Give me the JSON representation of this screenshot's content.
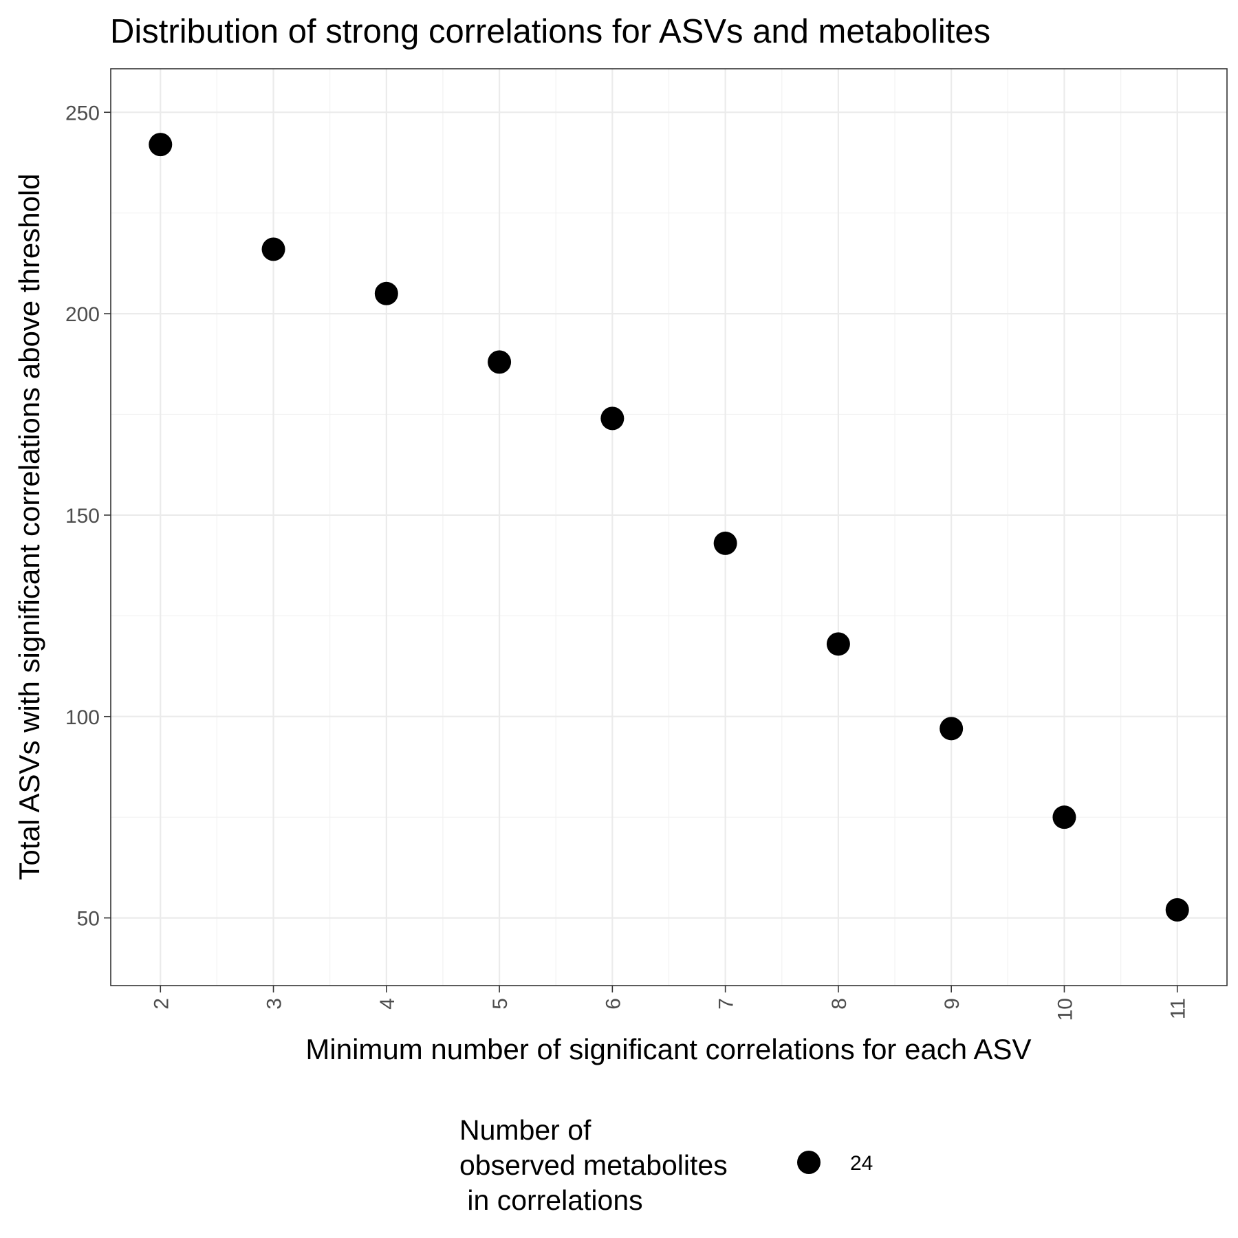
{
  "chart_data": {
    "type": "scatter",
    "title": "Distribution of strong correlations for ASVs and metabolites",
    "xlabel": "Minimum number of significant correlations for each ASV",
    "ylabel": "Total ASVs with significant correlations above threshold",
    "x": [
      2,
      3,
      4,
      5,
      6,
      7,
      8,
      9,
      10,
      11
    ],
    "y": [
      242,
      216,
      205,
      188,
      174,
      143,
      118,
      97,
      75,
      52
    ],
    "xticks": [
      "2",
      "3",
      "4",
      "5",
      "6",
      "7",
      "8",
      "9",
      "10",
      "11"
    ],
    "yticks": [
      50,
      100,
      150,
      200,
      250
    ],
    "ytick_labels": [
      "50",
      "100",
      "150",
      "200",
      "250"
    ],
    "xlim": [
      1.56,
      11.44
    ],
    "ylim": [
      33.2,
      260.8
    ],
    "grid": true,
    "point_color": "#000000",
    "legend": {
      "position": "bottom",
      "title_lines": [
        "Number of",
        "observed metabolites",
        " in correlations"
      ],
      "entries": [
        {
          "label": "24"
        }
      ]
    }
  }
}
